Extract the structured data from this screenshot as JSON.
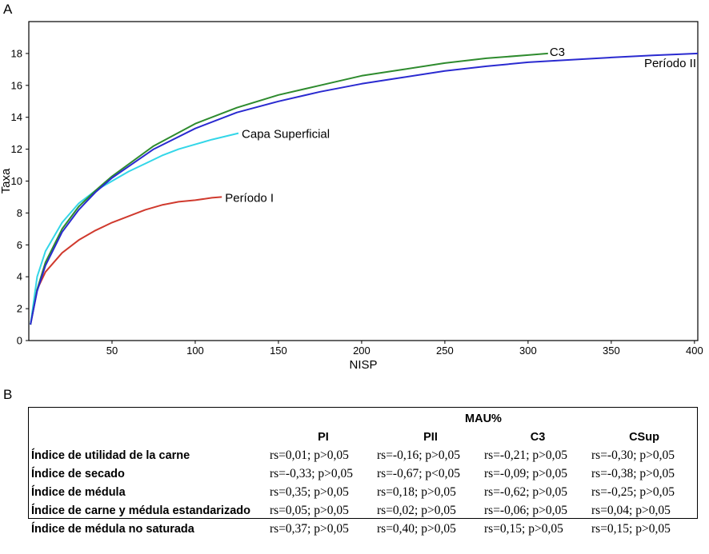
{
  "panel_a_label": "A",
  "panel_b_label": "B",
  "chart_data": {
    "type": "line",
    "xlabel": "NISP",
    "ylabel": "Taxa",
    "xlim": [
      0,
      402
    ],
    "ylim": [
      0,
      20
    ],
    "xticks": [
      50,
      100,
      150,
      200,
      250,
      300,
      350,
      400
    ],
    "yticks": [
      0,
      2,
      4,
      6,
      8,
      10,
      12,
      14,
      16,
      18
    ],
    "grid": false,
    "series": [
      {
        "name": "Período I",
        "color": "#d03a2e",
        "max_x": 116,
        "x": [
          1,
          5,
          10,
          20,
          30,
          40,
          50,
          60,
          70,
          80,
          90,
          100,
          110,
          116
        ],
        "y": [
          1.0,
          3.2,
          4.3,
          5.5,
          6.3,
          6.9,
          7.4,
          7.8,
          8.2,
          8.5,
          8.7,
          8.8,
          8.95,
          9.0
        ]
      },
      {
        "name": "Capa Superficial",
        "color": "#33d6e8",
        "max_x": 126,
        "x": [
          1,
          5,
          10,
          20,
          30,
          40,
          50,
          60,
          70,
          80,
          90,
          100,
          110,
          120,
          126
        ],
        "y": [
          1.0,
          4.0,
          5.6,
          7.4,
          8.6,
          9.4,
          10.0,
          10.6,
          11.1,
          11.6,
          12.0,
          12.3,
          12.6,
          12.85,
          13.0
        ]
      },
      {
        "name": "C3",
        "color": "#2e8b2e",
        "max_x": 312,
        "x": [
          1,
          5,
          10,
          20,
          30,
          40,
          50,
          75,
          100,
          125,
          150,
          175,
          200,
          225,
          250,
          275,
          300,
          312
        ],
        "y": [
          1.0,
          3.2,
          4.9,
          7.0,
          8.4,
          9.4,
          10.3,
          12.2,
          13.6,
          14.6,
          15.4,
          16.0,
          16.6,
          17.0,
          17.4,
          17.7,
          17.9,
          18.0
        ]
      },
      {
        "name": "Período II",
        "color": "#2a2ad0",
        "max_x": 402,
        "x": [
          1,
          5,
          10,
          20,
          30,
          40,
          50,
          75,
          100,
          125,
          150,
          175,
          200,
          225,
          250,
          275,
          300,
          325,
          350,
          375,
          402
        ],
        "y": [
          1.0,
          3.1,
          4.7,
          6.8,
          8.2,
          9.3,
          10.2,
          12.0,
          13.3,
          14.3,
          15.0,
          15.6,
          16.1,
          16.5,
          16.9,
          17.2,
          17.45,
          17.6,
          17.75,
          17.88,
          18.0
        ]
      }
    ],
    "annotations": [
      {
        "text": "Período I",
        "series": "Período I"
      },
      {
        "text": "Capa Superficial",
        "series": "Capa Superficial"
      },
      {
        "text": "C3",
        "series": "C3"
      },
      {
        "text": "Período II",
        "series": "Período II"
      }
    ]
  },
  "table": {
    "group_header": "MAU%",
    "columns": [
      "PI",
      "PII",
      "C3",
      "CSup"
    ],
    "rows": [
      {
        "label": "Índice de utilidad de la carne",
        "values": [
          "rs=0,01; p>0,05",
          "rs=-0,16; p>0,05",
          "rs=-0,21; p>0,05",
          "rs=-0,30; p>0,05"
        ]
      },
      {
        "label": "Índice de secado",
        "values": [
          "rs=-0,33; p>0,05",
          "rs=-0,67; p<0,05",
          "rs=-0,09; p>0,05",
          "rs=-0,38; p>0,05"
        ]
      },
      {
        "label": "Índice de médula",
        "values": [
          "rs=0,35; p>0,05",
          "rs=0,18; p>0,05",
          "rs=-0,62; p>0,05",
          "rs=-0,25; p>0,05"
        ]
      },
      {
        "label": "Índice de carne y médula estandarizado",
        "values": [
          "rs=0,05; p>0,05",
          "rs=0,02; p>0,05",
          "rs=-0,06; p>0,05",
          "rs=0,04; p>0,05"
        ]
      },
      {
        "label": "Índice de médula no saturada",
        "values": [
          "rs=0,37; p>0,05",
          "rs=0,40; p>0,05",
          "rs=0,15; p>0,05",
          "rs=0,15; p>0,05"
        ]
      }
    ]
  }
}
